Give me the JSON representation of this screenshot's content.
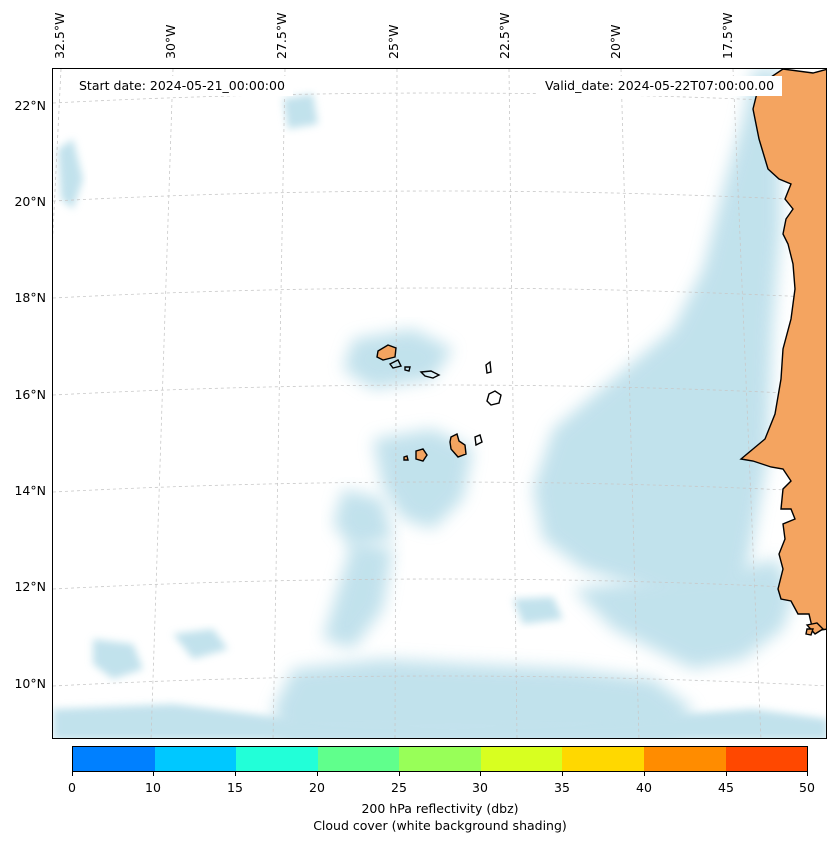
{
  "map": {
    "start_date": "Start date: 2024-05-21_00:00:00",
    "valid_date": "Valid_date: 2024-05-22T07:00:00.00",
    "lon_labels": [
      "32.5°W",
      "30°W",
      "27.5°W",
      "25°W",
      "22.5°W",
      "20°W",
      "17.5°W"
    ],
    "lat_labels": [
      "22°N",
      "20°N",
      "18°N",
      "16°N",
      "14°N",
      "12°N",
      "10°N"
    ],
    "land_color": "#f4a460",
    "cloud_color": "#add8e6"
  },
  "colorbar": {
    "ticks": [
      "0",
      "10",
      "15",
      "20",
      "25",
      "30",
      "35",
      "40",
      "45",
      "50"
    ],
    "colors": [
      "#0080ff",
      "#00c8ff",
      "#22ffd8",
      "#60ff8c",
      "#98ff58",
      "#d8ff20",
      "#ffd800",
      "#ff8c00",
      "#ff4800"
    ],
    "label_line1": "200 hPa reflectivity (dbz)",
    "label_line2": "Cloud cover (white background shading)"
  }
}
